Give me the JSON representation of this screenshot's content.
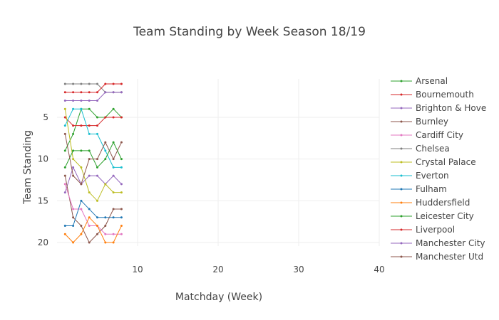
{
  "chart_data": {
    "type": "line",
    "title": "Team Standing by Week Season 18/19",
    "xlabel": "Matchday (Week)",
    "ylabel": "Team Standing",
    "xlim": [
      0,
      40
    ],
    "ylim": [
      20,
      1
    ],
    "y_reversed": true,
    "x_ticks": [
      10,
      20,
      30,
      40
    ],
    "y_ticks": [
      5,
      10,
      15,
      20
    ],
    "grid": true,
    "legend_position": "right",
    "x": [
      1,
      2,
      3,
      4,
      5,
      6,
      7,
      8
    ],
    "series": [
      {
        "name": "Arsenal",
        "color": "#2ca02c",
        "values": [
          9,
          7,
          4,
          4,
          5,
          5,
          4,
          5
        ]
      },
      {
        "name": "Bournemouth",
        "color": "#d62728",
        "values": [
          5,
          6,
          6,
          6,
          6,
          5,
          5,
          5
        ]
      },
      {
        "name": "Brighton & Hove",
        "color": "#9467bd",
        "values": [
          14,
          11,
          13,
          12,
          12,
          13,
          12,
          13
        ]
      },
      {
        "name": "Burnley",
        "color": "#8c564b",
        "values": [
          12,
          17,
          18,
          20,
          19,
          18,
          16,
          16
        ]
      },
      {
        "name": "Cardiff City",
        "color": "#e377c2",
        "values": [
          13,
          16,
          16,
          18,
          18,
          19,
          19,
          19
        ]
      },
      {
        "name": "Chelsea",
        "color": "#7f7f7f",
        "values": [
          1,
          1,
          1,
          1,
          1,
          2,
          2,
          2
        ]
      },
      {
        "name": "Crystal Palace",
        "color": "#bcbd22",
        "values": [
          4,
          10,
          11,
          14,
          15,
          13,
          14,
          14
        ]
      },
      {
        "name": "Everton",
        "color": "#17becf",
        "values": [
          6,
          4,
          4,
          7,
          7,
          9,
          11,
          11
        ]
      },
      {
        "name": "Fulham",
        "color": "#1f77b4",
        "values": [
          18,
          18,
          15,
          16,
          17,
          17,
          17,
          17
        ]
      },
      {
        "name": "Huddersfield",
        "color": "#ff7f0e",
        "values": [
          19,
          20,
          19,
          17,
          18,
          20,
          20,
          18
        ]
      },
      {
        "name": "Leicester City",
        "color": "#2ca02c",
        "values": [
          11,
          9,
          9,
          9,
          11,
          10,
          8,
          10
        ]
      },
      {
        "name": "Liverpool",
        "color": "#d62728",
        "values": [
          2,
          2,
          2,
          2,
          2,
          1,
          1,
          1
        ]
      },
      {
        "name": "Manchester City",
        "color": "#9467bd",
        "values": [
          3,
          3,
          3,
          3,
          3,
          2,
          2,
          2
        ]
      },
      {
        "name": "Manchester Utd",
        "color": "#8c564b",
        "values": [
          7,
          12,
          13,
          10,
          10,
          8,
          10,
          8
        ]
      }
    ]
  }
}
